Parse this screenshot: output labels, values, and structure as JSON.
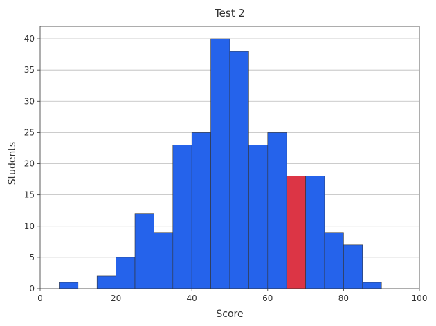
{
  "chart_data": {
    "type": "bar",
    "title": "Test 2",
    "xlabel": "Score",
    "ylabel": "Students",
    "xlim": [
      0,
      100
    ],
    "ylim": [
      0,
      42
    ],
    "xticks": [
      0,
      20,
      40,
      60,
      80,
      100
    ],
    "yticks": [
      0,
      5,
      10,
      15,
      20,
      25,
      30,
      35,
      40
    ],
    "grid": "y",
    "bin_width": 5,
    "bins": [
      {
        "start": 5,
        "count": 1
      },
      {
        "start": 10,
        "count": 0
      },
      {
        "start": 15,
        "count": 2
      },
      {
        "start": 20,
        "count": 5
      },
      {
        "start": 25,
        "count": 12
      },
      {
        "start": 30,
        "count": 9
      },
      {
        "start": 35,
        "count": 23
      },
      {
        "start": 40,
        "count": 25
      },
      {
        "start": 45,
        "count": 40
      },
      {
        "start": 50,
        "count": 38
      },
      {
        "start": 55,
        "count": 23
      },
      {
        "start": 60,
        "count": 25
      },
      {
        "start": 65,
        "count": 18,
        "highlight": true
      },
      {
        "start": 70,
        "count": 18
      },
      {
        "start": 75,
        "count": 9
      },
      {
        "start": 80,
        "count": 7
      },
      {
        "start": 85,
        "count": 1
      }
    ],
    "colors": {
      "bar": "#2563eb",
      "highlight": "#dc3545",
      "edge": "#333333",
      "grid": "#bbbbbb",
      "frame": "#333333"
    }
  }
}
